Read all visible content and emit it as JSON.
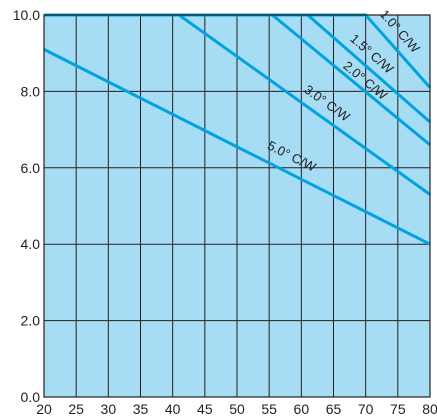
{
  "chart_data": {
    "type": "line",
    "title": "",
    "xlabel": "",
    "ylabel": "",
    "xlim": [
      20,
      80
    ],
    "ylim": [
      0,
      10
    ],
    "x_ticks": [
      20,
      25,
      30,
      35,
      40,
      45,
      50,
      55,
      60,
      65,
      70,
      75,
      80
    ],
    "x_tick_labels": [
      "20",
      "25",
      "30",
      "35",
      "40",
      "45",
      "50",
      "55",
      "60",
      "65",
      "70",
      "75",
      "80"
    ],
    "y_ticks": [
      0,
      2,
      4,
      6,
      8,
      10
    ],
    "y_tick_labels": [
      "0.0",
      "2.0",
      "4.0",
      "6.0",
      "8.0",
      "10.0"
    ],
    "grid": true,
    "colors": {
      "plot_background": "#a6dcf4",
      "grid": "#231f20",
      "curve": "#00a3e0"
    },
    "series": [
      {
        "name": "1.0° C/W",
        "x": [
          20,
          70,
          80
        ],
        "y": [
          10,
          10,
          8.1
        ]
      },
      {
        "name": "1.5° C/W",
        "x": [
          20,
          61,
          80
        ],
        "y": [
          10,
          10,
          7.2
        ]
      },
      {
        "name": "2.0° C/W",
        "x": [
          20,
          55.5,
          80
        ],
        "y": [
          10,
          10,
          6.6
        ]
      },
      {
        "name": "3.0° C/W",
        "x": [
          20,
          41,
          80
        ],
        "y": [
          10,
          10,
          5.3
        ]
      },
      {
        "name": "5.0° C/W",
        "x": [
          20,
          80
        ],
        "y": [
          9.1,
          4.0
        ]
      }
    ],
    "curve_labels": [
      {
        "series": 0,
        "text": "1.0° C/W",
        "x": 74.8,
        "y": 9.5
      },
      {
        "series": 1,
        "text": "1.5° C/W",
        "x": 70.5,
        "y": 8.9
      },
      {
        "series": 2,
        "text": "2.0° C/W",
        "x": 69.5,
        "y": 8.2
      },
      {
        "series": 3,
        "text": "3.0° C/W",
        "x": 63.6,
        "y": 7.6
      },
      {
        "series": 4,
        "text": "5.0° C/W",
        "x": 58.2,
        "y": 6.2
      }
    ]
  }
}
